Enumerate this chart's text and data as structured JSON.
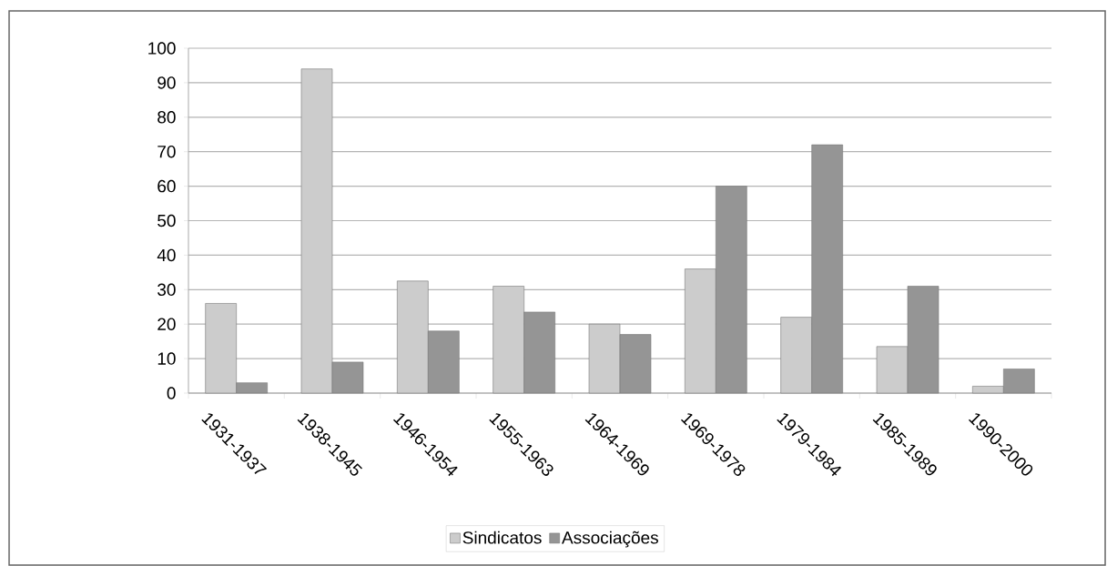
{
  "chart_data": {
    "type": "bar",
    "categories": [
      "1931-1937",
      "1938-1945",
      "1946-1954",
      "1955-1963",
      "1964-1969",
      "1969-1978",
      "1979-1984",
      "1985-1989",
      "1990-2000"
    ],
    "series": [
      {
        "name": "Sindicatos",
        "color": "#cccccc",
        "values": [
          26,
          94,
          32.5,
          31,
          20,
          36,
          22,
          13.5,
          2
        ]
      },
      {
        "name": "Associações",
        "color": "#959595",
        "values": [
          3,
          9,
          18,
          23.5,
          17,
          60,
          72,
          31,
          7
        ]
      }
    ],
    "ylim": [
      0,
      100
    ],
    "yticks": [
      0,
      10,
      20,
      30,
      40,
      50,
      60,
      70,
      80,
      90,
      100
    ],
    "grid": "y",
    "legend": "bottom"
  }
}
